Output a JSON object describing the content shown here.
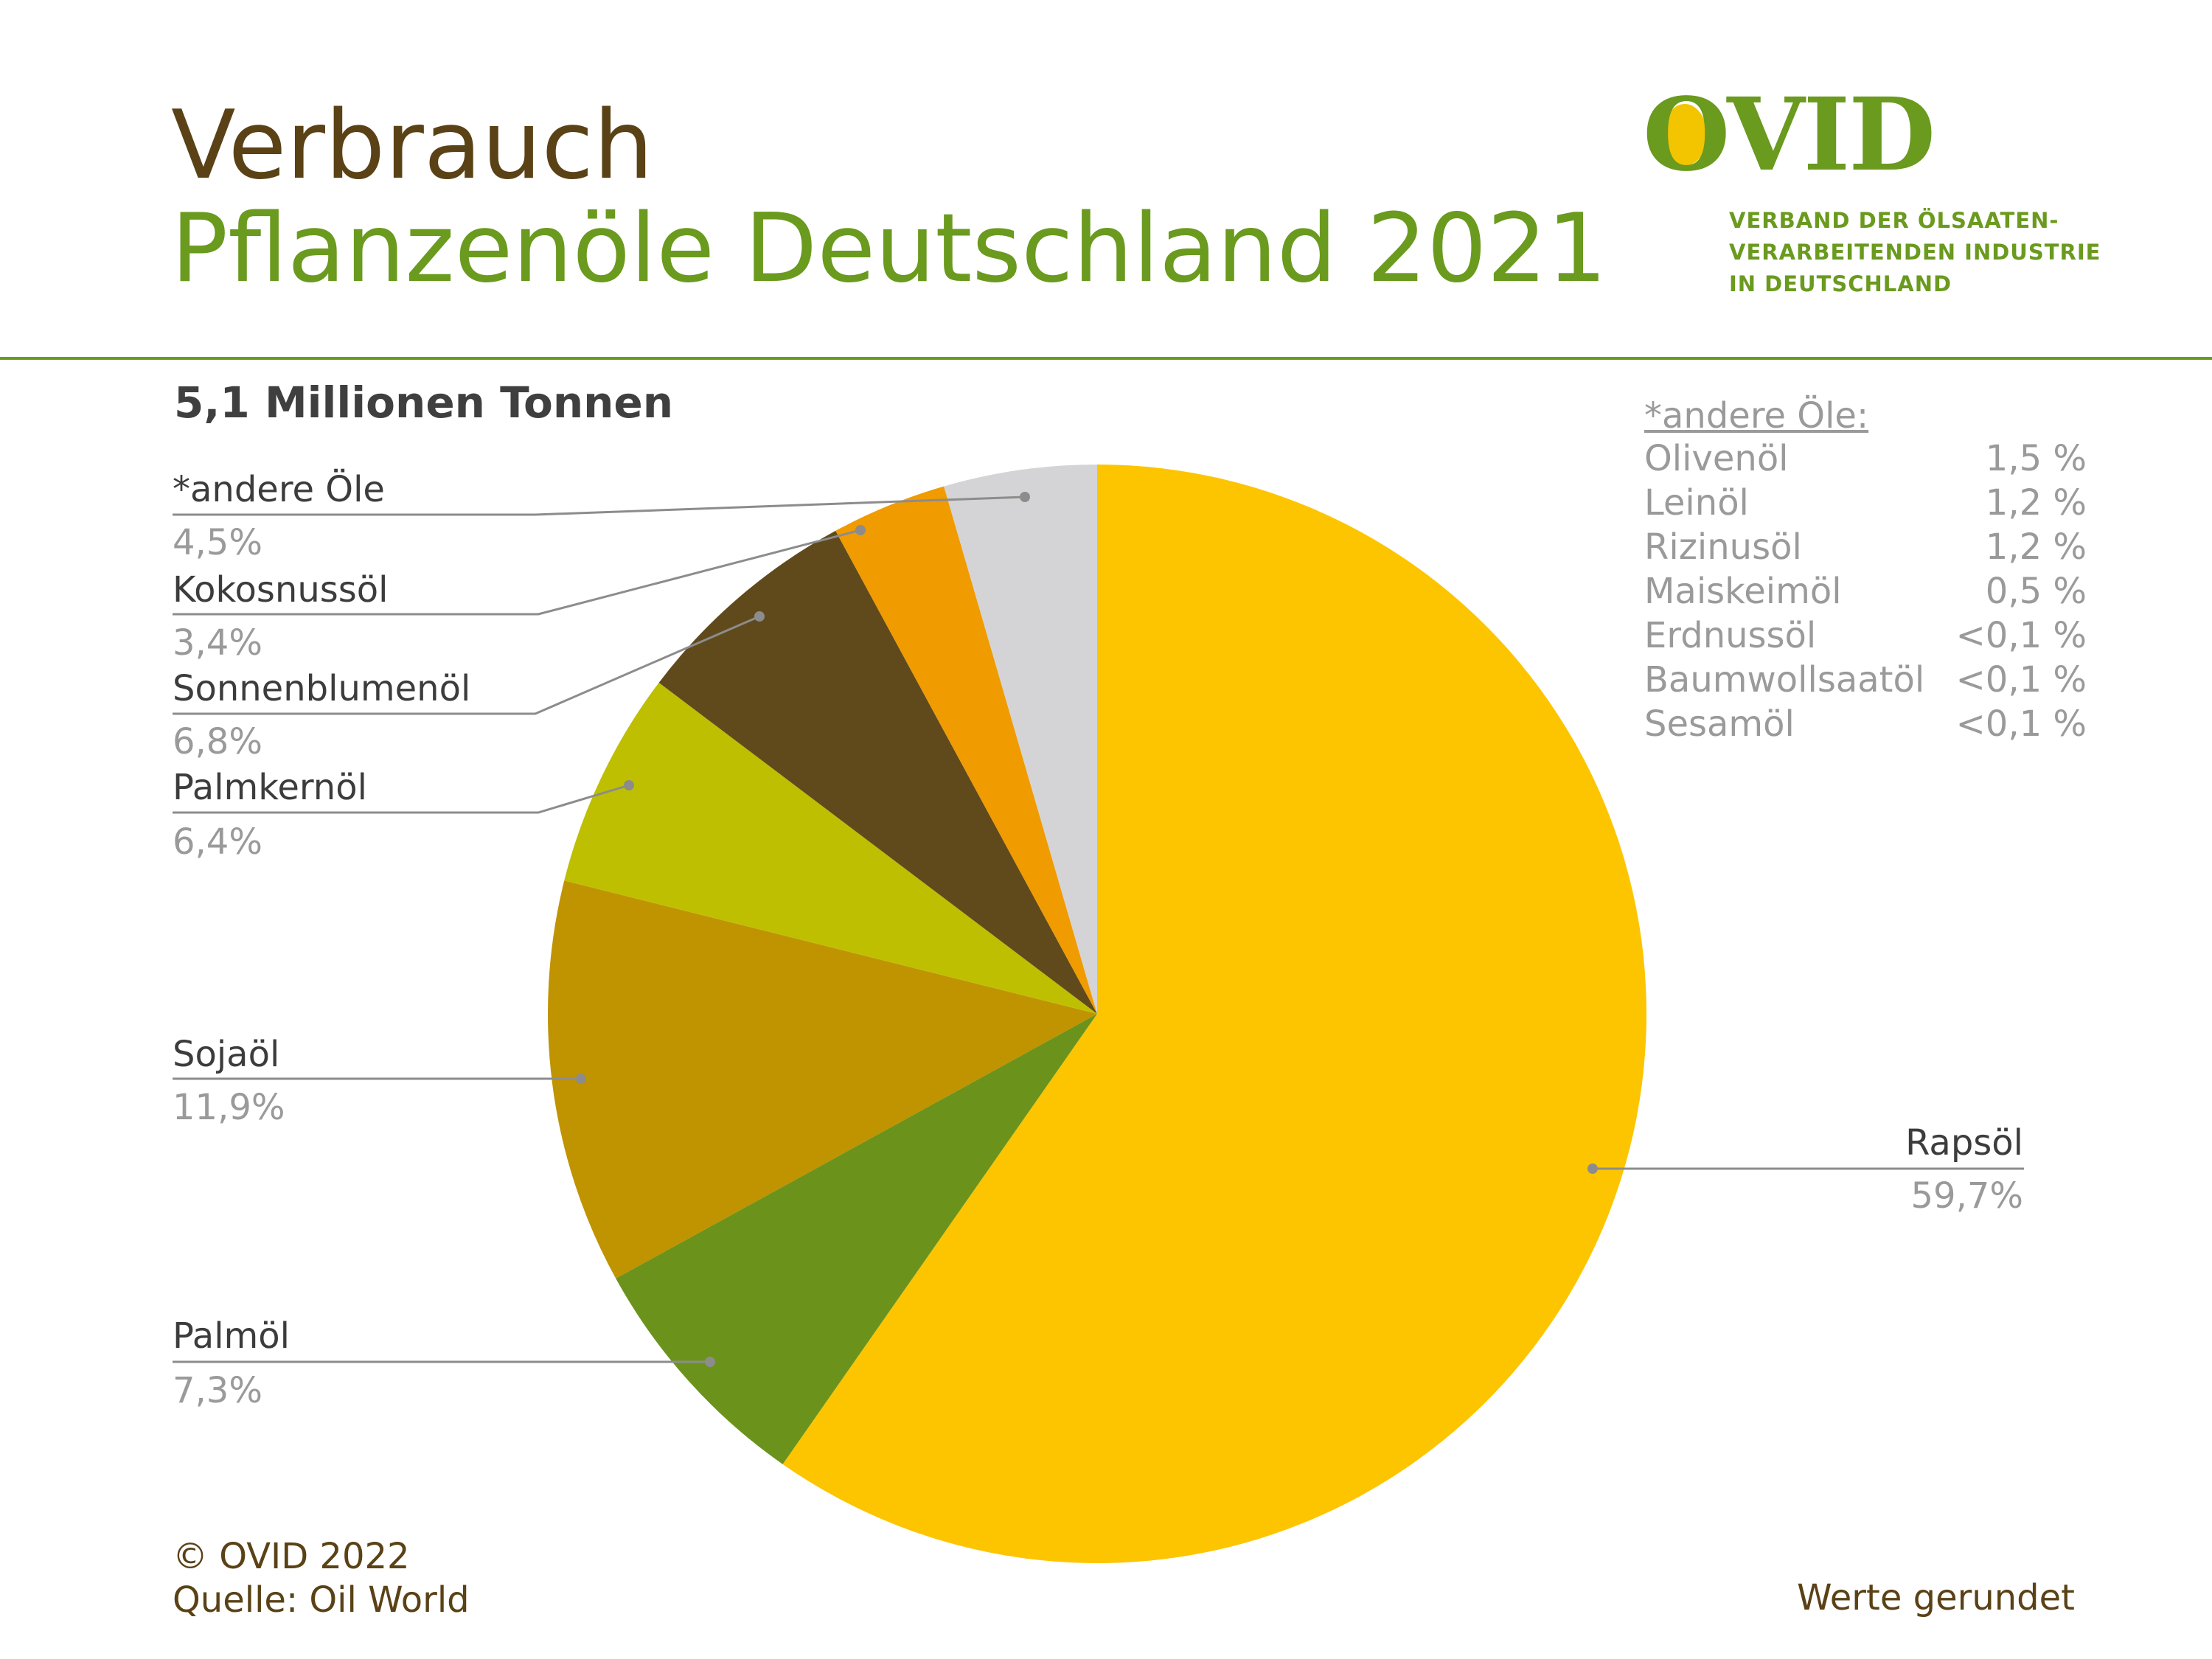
{
  "header": {
    "title_line1": "Verbrauch",
    "title_line2": "Pflanzenöle Deutschland 2021",
    "logo_text": "OVID",
    "association_lines": [
      "VERBAND DER ÖLSAATEN-",
      "VERARBEITENDEN INDUSTRIE",
      "IN DEUTSCHLAND"
    ]
  },
  "subtitle": "5,1 Millionen Tonnen",
  "other_oils": {
    "heading": "*andere Öle:",
    "items": [
      {
        "name": "Olivenöl",
        "value": "1,5 %"
      },
      {
        "name": "Leinöl",
        "value": "1,2 %"
      },
      {
        "name": "Rizinusöl",
        "value": "1,2 %"
      },
      {
        "name": "Maiskeimöl",
        "value": "0,5 %"
      },
      {
        "name": "Erdnussöl",
        "value": "<0,1 %"
      },
      {
        "name": "Baumwollsaatöl",
        "value": "<0,1 %"
      },
      {
        "name": "Sesamöl",
        "value": "<0,1 %"
      }
    ]
  },
  "footer": {
    "copyright": "© OVID 2022",
    "source": "Quelle: Oil World",
    "note": "Werte gerundet"
  },
  "colors": {
    "brand_green": "#6a9a1e",
    "brand_brown": "#5a4216"
  },
  "chart_data": {
    "type": "pie",
    "start_angle_deg": 0,
    "direction": "clockwise",
    "slices": [
      {
        "label": "Rapsöl",
        "value": 59.7,
        "display": "59,7%",
        "color": "#fcc500"
      },
      {
        "label": "Palmöl",
        "value": 7.3,
        "display": "7,3%",
        "color": "#6b931c"
      },
      {
        "label": "Sojaöl",
        "value": 11.9,
        "display": "11,9%",
        "color": "#c09300"
      },
      {
        "label": "Palmkernöl",
        "value": 6.4,
        "display": "6,4%",
        "color": "#bdbf00"
      },
      {
        "label": "Sonnenblumenöl",
        "value": 6.8,
        "display": "6,8%",
        "color": "#604a1c"
      },
      {
        "label": "Kokosnussöl",
        "value": 3.4,
        "display": "3,4%",
        "color": "#f09b00"
      },
      {
        "label": "*andere Öle",
        "value": 4.5,
        "display": "4,5%",
        "color": "#d4d4d6"
      }
    ]
  }
}
